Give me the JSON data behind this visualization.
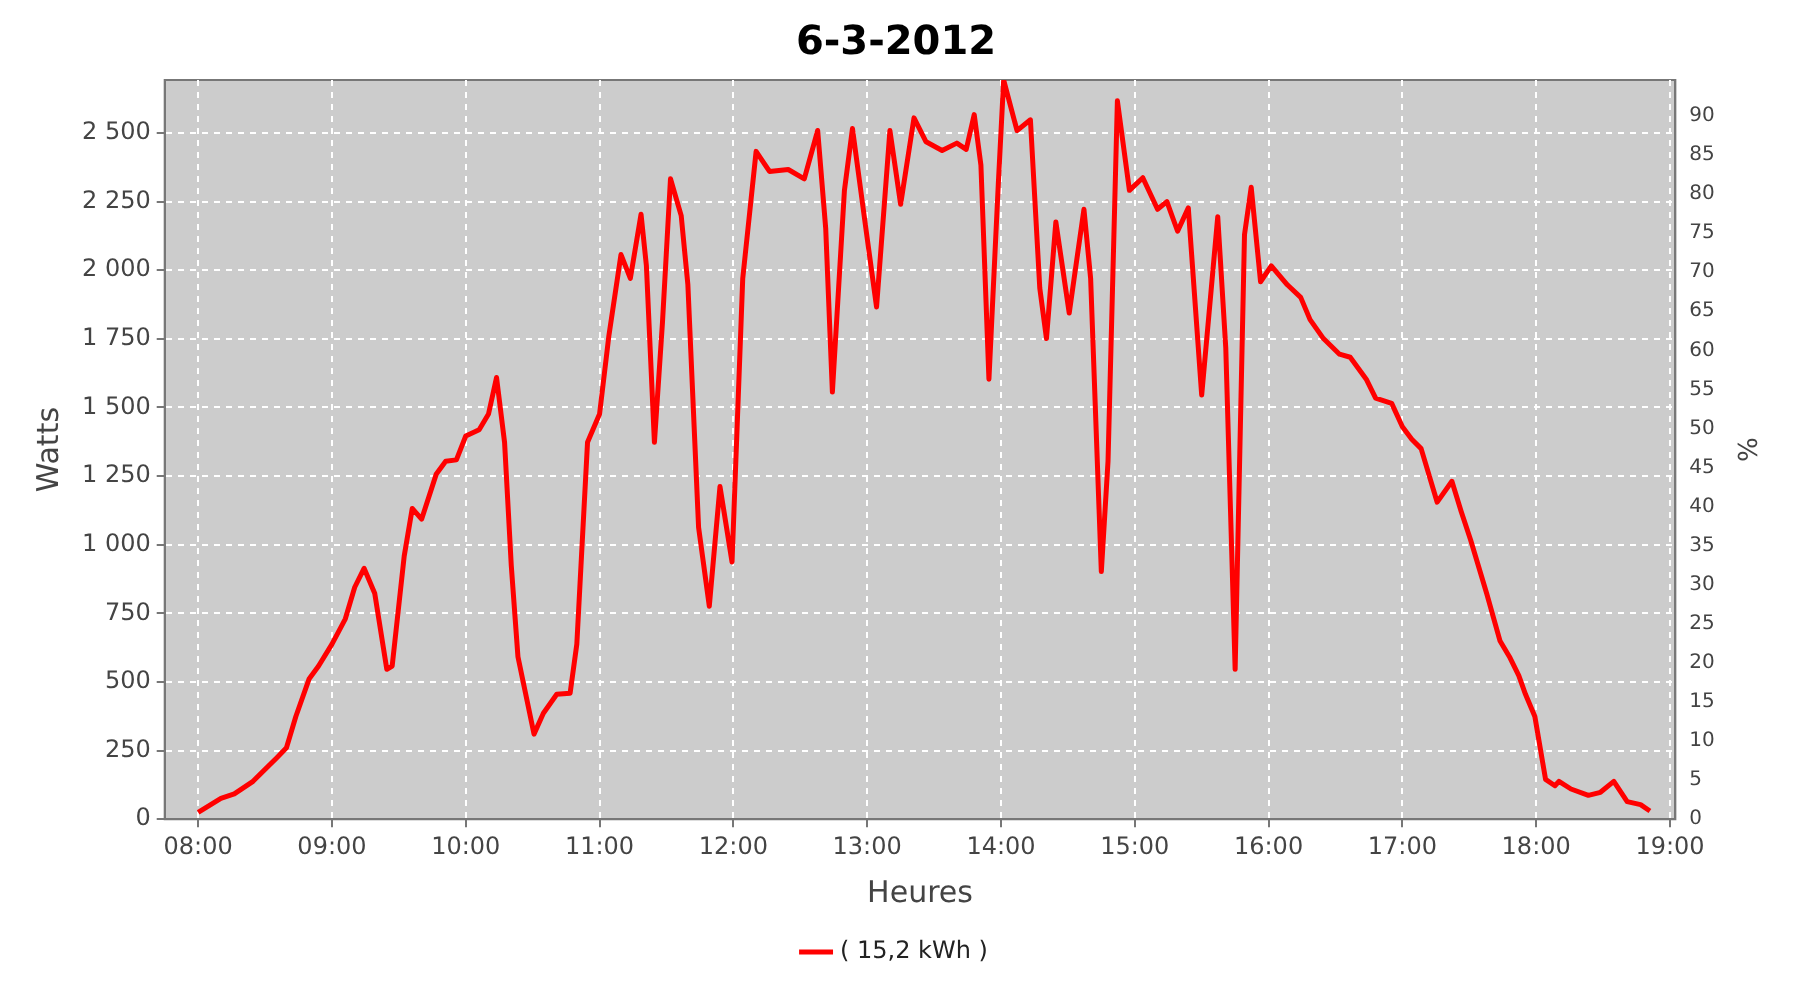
{
  "chart_data": {
    "type": "line",
    "title": "6-3-2012",
    "xlabel": "Heures",
    "ylabel": "Watts",
    "y2label": "%",
    "xlim": [
      7.75,
      19.04
    ],
    "xticks": [
      {
        "value": 8,
        "label": "08:00"
      },
      {
        "value": 9,
        "label": "09:00"
      },
      {
        "value": 10,
        "label": "10:00"
      },
      {
        "value": 11,
        "label": "11:00"
      },
      {
        "value": 12,
        "label": "12:00"
      },
      {
        "value": 13,
        "label": "13:00"
      },
      {
        "value": 14,
        "label": "14:00"
      },
      {
        "value": 15,
        "label": "15:00"
      },
      {
        "value": 16,
        "label": "16:00"
      },
      {
        "value": 17,
        "label": "17:00"
      },
      {
        "value": 18,
        "label": "18:00"
      },
      {
        "value": 19,
        "label": "19:00"
      }
    ],
    "ylim": [
      0,
      2693
    ],
    "yticks": [
      0,
      250,
      500,
      750,
      {
        "value": 1000,
        "label": "1 000"
      },
      {
        "value": 1250,
        "label": "1 250"
      },
      {
        "value": 1500,
        "label": "1 500"
      },
      {
        "value": 1750,
        "label": "1 750"
      },
      {
        "value": 2000,
        "label": "2 000"
      },
      {
        "value": 2250,
        "label": "2 250"
      },
      {
        "value": 2500,
        "label": "2 500"
      }
    ],
    "y2lim": [
      0,
      94.6
    ],
    "y2ticks": [
      0,
      5,
      10,
      15,
      20,
      25,
      30,
      35,
      40,
      45,
      50,
      55,
      60,
      65,
      70,
      75,
      80,
      85,
      90
    ],
    "grid": true,
    "legend": "bottom",
    "marker": "none",
    "line_style": "solid",
    "series": [
      {
        "name": "( 15,2 kWh )",
        "color": "#ff0000",
        "x": [
          8.0,
          8.17,
          8.27,
          8.41,
          8.59,
          8.66,
          8.73,
          8.83,
          8.9,
          9.0,
          9.1,
          9.17,
          9.24,
          9.32,
          9.41,
          9.45,
          9.54,
          9.6,
          9.67,
          9.78,
          9.85,
          9.93,
          10.0,
          10.1,
          10.17,
          10.23,
          10.29,
          10.34,
          10.39,
          10.51,
          10.58,
          10.68,
          10.78,
          10.83,
          10.91,
          11.0,
          11.07,
          11.16,
          11.23,
          11.31,
          11.35,
          11.41,
          11.47,
          11.53,
          11.61,
          11.66,
          11.74,
          11.82,
          11.9,
          11.99,
          12.07,
          12.17,
          12.27,
          12.41,
          12.53,
          12.63,
          12.69,
          12.74,
          12.83,
          12.89,
          12.99,
          13.07,
          13.17,
          13.25,
          13.35,
          13.44,
          13.56,
          13.67,
          13.74,
          13.8,
          13.85,
          13.91,
          13.98,
          14.02,
          14.12,
          14.22,
          14.29,
          14.34,
          14.41,
          14.51,
          14.62,
          14.67,
          14.75,
          14.8,
          14.87,
          14.96,
          15.06,
          15.17,
          15.24,
          15.32,
          15.4,
          15.5,
          15.62,
          15.68,
          15.75,
          15.82,
          15.87,
          15.94,
          16.02,
          16.14,
          16.24,
          16.31,
          16.41,
          16.53,
          16.61,
          16.73,
          16.8,
          16.92,
          17.0,
          17.07,
          17.14,
          17.26,
          17.37,
          17.44,
          17.51,
          17.63,
          17.73,
          17.8,
          17.87,
          17.92,
          17.99,
          18.07,
          18.14,
          18.17,
          18.26,
          18.39,
          18.48,
          18.58,
          18.68,
          18.78,
          18.85
        ],
        "values": [
          25,
          76,
          92,
          138,
          225,
          260,
          374,
          512,
          558,
          638,
          730,
          845,
          914,
          822,
          546,
          558,
          959,
          1132,
          1093,
          1258,
          1304,
          1309,
          1396,
          1419,
          1476,
          1609,
          1373,
          925,
          592,
          310,
          386,
          455,
          459,
          638,
          1373,
          1476,
          1763,
          2057,
          1970,
          2204,
          2016,
          1373,
          1809,
          2333,
          2199,
          1947,
          1063,
          776,
          1212,
          937,
          1970,
          2433,
          2360,
          2367,
          2333,
          2509,
          2153,
          1556,
          2291,
          2516,
          2153,
          1866,
          2509,
          2240,
          2555,
          2468,
          2436,
          2463,
          2440,
          2567,
          2383,
          1603,
          2314,
          2693,
          2509,
          2548,
          1935,
          1751,
          2176,
          1844,
          2222,
          1970,
          902,
          1304,
          2617,
          2291,
          2337,
          2222,
          2250,
          2142,
          2227,
          1545,
          2195,
          1717,
          546,
          2130,
          2302,
          1958,
          2016,
          1947,
          1901,
          1820,
          1751,
          1694,
          1683,
          1603,
          1534,
          1515,
          1430,
          1384,
          1350,
          1155,
          1231,
          1120,
          1017,
          822,
          649,
          592,
          523,
          455,
          374,
          145,
          122,
          138,
          110,
          87,
          98,
          138,
          64,
          53,
          30
        ]
      }
    ]
  }
}
